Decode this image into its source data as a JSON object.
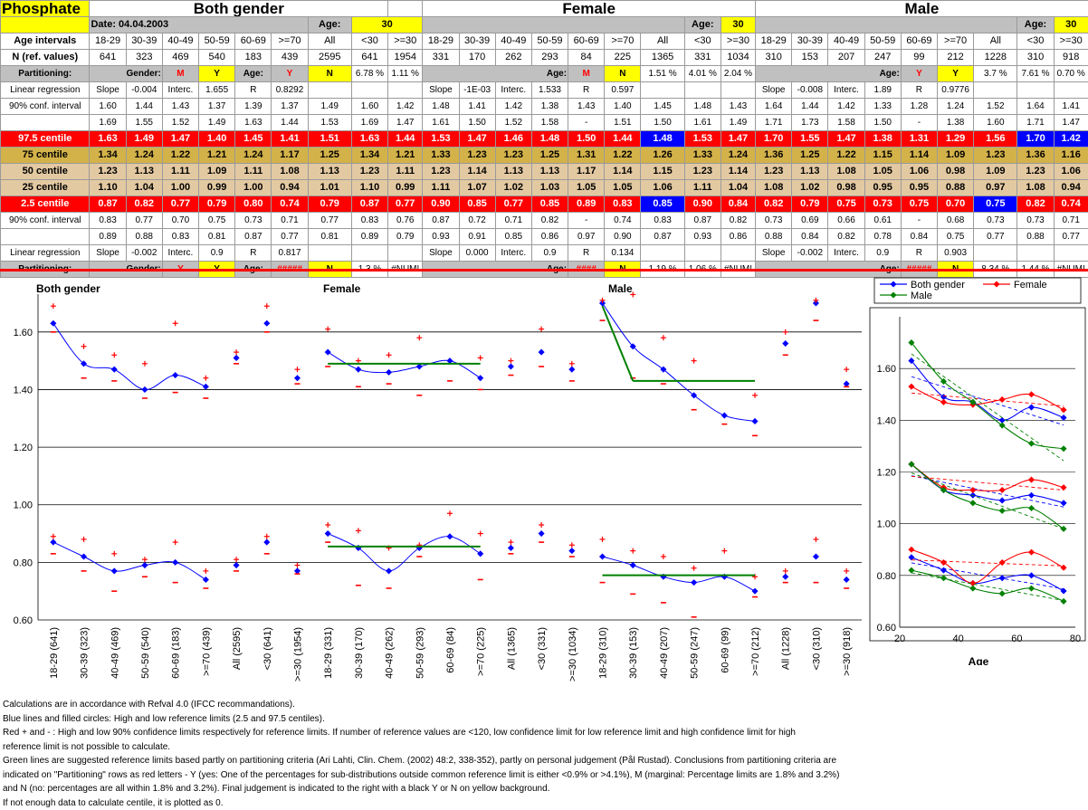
{
  "header": {
    "title": "Phosphate",
    "date": "Date:  04.04.2003",
    "groups": [
      "Both gender",
      "Female",
      "Male"
    ],
    "age_label": "Age:",
    "age_value": "30"
  },
  "row_labels": {
    "age_intervals": "Age intervals",
    "n_ref": "N (ref. values)",
    "partitioning": "Partitioning:",
    "linreg": "Linear regression",
    "conf": "90% conf. interval",
    "c975": "97.5 centile",
    "c75": "75 centile",
    "c50": "50 centile",
    "c25": "25 centile",
    "c25b": "2.5 centile",
    "gender": "Gender:",
    "age": "Age:"
  },
  "intervals": [
    "18-29",
    "30-39",
    "40-49",
    "50-59",
    "60-69",
    ">=70",
    "All",
    "<30",
    ">=30"
  ],
  "groups": [
    {
      "n": [
        "641",
        "323",
        "469",
        "540",
        "183",
        "439",
        "2595",
        "641",
        "1954"
      ],
      "part_top": {
        "gender": "Gender:",
        "g1": "M",
        "g2": "Y",
        "age": "Age:",
        "a1": "Y",
        "a2": "N",
        "p1": "6.78 %",
        "p2": "1.11 %"
      },
      "lr_top": [
        "Slope",
        "-0.004",
        "Interc.",
        "1.655",
        "R",
        "0.8292",
        "",
        "",
        ""
      ],
      "ci_top1": [
        "1.60",
        "1.44",
        "1.43",
        "1.37",
        "1.39",
        "1.37",
        "1.49",
        "1.60",
        "1.42"
      ],
      "ci_top2": [
        "1.69",
        "1.55",
        "1.52",
        "1.49",
        "1.63",
        "1.44",
        "1.53",
        "1.69",
        "1.47"
      ],
      "c975": [
        "1.63",
        "1.49",
        "1.47",
        "1.40",
        "1.45",
        "1.41",
        "1.51",
        "1.63",
        "1.44"
      ],
      "c75": [
        "1.34",
        "1.24",
        "1.22",
        "1.21",
        "1.24",
        "1.17",
        "1.25",
        "1.34",
        "1.21"
      ],
      "c50": [
        "1.23",
        "1.13",
        "1.11",
        "1.09",
        "1.11",
        "1.08",
        "1.13",
        "1.23",
        "1.11"
      ],
      "c25": [
        "1.10",
        "1.04",
        "1.00",
        "0.99",
        "1.00",
        "0.94",
        "1.01",
        "1.10",
        "0.99"
      ],
      "c025": [
        "0.87",
        "0.82",
        "0.77",
        "0.79",
        "0.80",
        "0.74",
        "0.79",
        "0.87",
        "0.77"
      ],
      "ci_bot1": [
        "0.83",
        "0.77",
        "0.70",
        "0.75",
        "0.73",
        "0.71",
        "0.77",
        "0.83",
        "0.76"
      ],
      "ci_bot2": [
        "0.89",
        "0.88",
        "0.83",
        "0.81",
        "0.87",
        "0.77",
        "0.81",
        "0.89",
        "0.79"
      ],
      "lr_bot": [
        "Slope",
        "-0.002",
        "Interc.",
        "0.9",
        "R",
        "0.817",
        "",
        "",
        ""
      ],
      "part_bot": {
        "gender": "Gender:",
        "g1": "Y",
        "g2": "Y",
        "age": "Age:",
        "a1": "#####",
        "a2": "N",
        "p1": "1.3 %",
        "p2": "#NUM!"
      }
    },
    {
      "n": [
        "331",
        "170",
        "262",
        "293",
        "84",
        "225",
        "1365",
        "331",
        "1034"
      ],
      "part_top": {
        "age": "Age:",
        "a1": "M",
        "a2": "N",
        "p0": "1.51 %",
        "p1": "4.01 %",
        "p2": "2.04 %"
      },
      "lr_top": [
        "Slope",
        "-1E-03",
        "Interc.",
        "1.533",
        "R",
        "0.597",
        "",
        "",
        ""
      ],
      "ci_top1": [
        "1.48",
        "1.41",
        "1.42",
        "1.38",
        "1.43",
        "1.40",
        "1.45",
        "1.48",
        "1.43"
      ],
      "ci_top2": [
        "1.61",
        "1.50",
        "1.52",
        "1.58",
        "-",
        "1.51",
        "1.50",
        "1.61",
        "1.49"
      ],
      "c975": [
        "1.53",
        "1.47",
        "1.46",
        "1.48",
        "1.50",
        "1.44",
        "1.48",
        "1.53",
        "1.47"
      ],
      "c75": [
        "1.33",
        "1.23",
        "1.23",
        "1.25",
        "1.31",
        "1.22",
        "1.26",
        "1.33",
        "1.24"
      ],
      "c50": [
        "1.23",
        "1.14",
        "1.13",
        "1.13",
        "1.17",
        "1.14",
        "1.15",
        "1.23",
        "1.14"
      ],
      "c25": [
        "1.11",
        "1.07",
        "1.02",
        "1.03",
        "1.05",
        "1.05",
        "1.06",
        "1.11",
        "1.04"
      ],
      "c025": [
        "0.90",
        "0.85",
        "0.77",
        "0.85",
        "0.89",
        "0.83",
        "0.85",
        "0.90",
        "0.84"
      ],
      "ci_bot1": [
        "0.87",
        "0.72",
        "0.71",
        "0.82",
        "-",
        "0.74",
        "0.83",
        "0.87",
        "0.82"
      ],
      "ci_bot2": [
        "0.93",
        "0.91",
        "0.85",
        "0.86",
        "0.97",
        "0.90",
        "0.87",
        "0.93",
        "0.86"
      ],
      "lr_bot": [
        "Slope",
        "0.000",
        "Interc.",
        "0.9",
        "R",
        "0.134",
        "",
        "",
        ""
      ],
      "part_bot": {
        "age": "Age:",
        "a1": "####",
        "a2": "N",
        "p0": "1.19 %",
        "p1": "1.06 %",
        "p2": "#NUM!"
      }
    },
    {
      "n": [
        "310",
        "153",
        "207",
        "247",
        "99",
        "212",
        "1228",
        "310",
        "918"
      ],
      "part_top": {
        "age": "Age:",
        "a1": "Y",
        "a2": "Y",
        "p0": "3.7 %",
        "p1": "7.61 %",
        "p2": "0.70 %"
      },
      "lr_top": [
        "Slope",
        "-0.008",
        "Interc.",
        "1.89",
        "R",
        "0.9776",
        "",
        "",
        ""
      ],
      "ci_top1": [
        "1.64",
        "1.44",
        "1.42",
        "1.33",
        "1.28",
        "1.24",
        "1.52",
        "1.64",
        "1.41"
      ],
      "ci_top2": [
        "1.71",
        "1.73",
        "1.58",
        "1.50",
        "-",
        "1.38",
        "1.60",
        "1.71",
        "1.47"
      ],
      "c975": [
        "1.70",
        "1.55",
        "1.47",
        "1.38",
        "1.31",
        "1.29",
        "1.56",
        "1.70",
        "1.42"
      ],
      "c75": [
        "1.36",
        "1.25",
        "1.22",
        "1.15",
        "1.14",
        "1.09",
        "1.23",
        "1.36",
        "1.16"
      ],
      "c50": [
        "1.23",
        "1.13",
        "1.08",
        "1.05",
        "1.06",
        "0.98",
        "1.09",
        "1.23",
        "1.06"
      ],
      "c25": [
        "1.08",
        "1.02",
        "0.98",
        "0.95",
        "0.95",
        "0.88",
        "0.97",
        "1.08",
        "0.94"
      ],
      "c025": [
        "0.82",
        "0.79",
        "0.75",
        "0.73",
        "0.75",
        "0.70",
        "0.75",
        "0.82",
        "0.74"
      ],
      "ci_bot1": [
        "0.73",
        "0.69",
        "0.66",
        "0.61",
        "-",
        "0.68",
        "0.73",
        "0.73",
        "0.71"
      ],
      "ci_bot2": [
        "0.88",
        "0.84",
        "0.82",
        "0.78",
        "0.84",
        "0.75",
        "0.77",
        "0.88",
        "0.77"
      ],
      "lr_bot": [
        "Slope",
        "-0.002",
        "Interc.",
        "0.9",
        "R",
        "0.903",
        "",
        "",
        ""
      ],
      "part_bot": {
        "age": "Age:",
        "a1": "#####",
        "a2": "N",
        "p0": "8.34 %",
        "p1": "1.44 %",
        "p2": "#NUM!"
      }
    }
  ],
  "chart_data": [
    {
      "type": "scatter",
      "titles": [
        "Both gender",
        "Female",
        "Male"
      ],
      "ylim": [
        0.6,
        1.7
      ],
      "yticks": [
        "0.60",
        "0.80",
        "1.00",
        "1.20",
        "1.40",
        "1.60"
      ],
      "categories": [
        "18-29 (641)",
        "30-39 (323)",
        "40-49 (469)",
        "50-59 (540)",
        "60-69 (183)",
        ">=70 (439)",
        "All (2595)",
        "<30 (641)",
        ">=30 (1954)",
        "18-29 (331)",
        "30-39 (170)",
        "40-49 (262)",
        "50-59 (293)",
        "60-69 (84)",
        ">=70 (225)",
        "All (1365)",
        "<30 (331)",
        ">=30 (1034)",
        "18-29 (310)",
        "30-39 (153)",
        "40-49 (207)",
        "50-59 (247)",
        "60-69 (99)",
        ">=70 (212)",
        "All (1228)",
        "<30 (310)",
        ">=30 (918)"
      ],
      "colors": {
        "centile": "#0000ff",
        "conf": "#ff0000",
        "suggested": "#008000"
      },
      "green_lines": [
        {
          "from": 9,
          "to": 14,
          "y": 1.49
        },
        {
          "from": 9,
          "to": 14,
          "y": 0.855
        },
        {
          "from": 18,
          "to": 19,
          "y0": 1.69,
          "y1": 1.43
        },
        {
          "from": 19,
          "to": 23,
          "y": 1.43
        },
        {
          "from": 18,
          "to": 23,
          "y": 0.755
        }
      ]
    },
    {
      "type": "line",
      "xlabel": "Age",
      "xlim": [
        20,
        80
      ],
      "xticks": [
        "20",
        "40",
        "60",
        "80"
      ],
      "ylim": [
        0.6,
        1.8
      ],
      "yticks": [
        "0.60",
        "0.80",
        "1.00",
        "1.20",
        "1.40",
        "1.60"
      ],
      "x": [
        24,
        35,
        45,
        55,
        65,
        76
      ],
      "legend": [
        "Both gender",
        "Female",
        "Male"
      ],
      "colors": [
        "#0000ff",
        "#ff0000",
        "#008000"
      ],
      "series": [
        {
          "name": "Both gender",
          "c975": [
            1.63,
            1.49,
            1.47,
            1.4,
            1.45,
            1.41
          ],
          "c50": [
            1.23,
            1.13,
            1.11,
            1.09,
            1.11,
            1.08
          ],
          "c025": [
            0.87,
            0.82,
            0.77,
            0.79,
            0.8,
            0.74
          ]
        },
        {
          "name": "Female",
          "c975": [
            1.53,
            1.47,
            1.46,
            1.48,
            1.5,
            1.44
          ],
          "c50": [
            1.23,
            1.14,
            1.13,
            1.13,
            1.17,
            1.14
          ],
          "c025": [
            0.9,
            0.85,
            0.77,
            0.85,
            0.89,
            0.83
          ]
        },
        {
          "name": "Male",
          "c975": [
            1.7,
            1.55,
            1.47,
            1.38,
            1.31,
            1.29
          ],
          "c50": [
            1.23,
            1.13,
            1.08,
            1.05,
            1.06,
            0.98
          ],
          "c025": [
            0.82,
            0.79,
            0.75,
            0.73,
            0.75,
            0.7
          ]
        }
      ]
    }
  ],
  "notes": [
    "Calculations are in accordance with Refval 4.0 (IFCC recommandations).",
    "Blue lines and filled circles: High and low reference limits (2.5 and 97.5 centiles).",
    "Red + and - : High and low 90% confidence limits respectively for reference limits. If number of reference values are <120, low confidence limit for low reference limit and high confidence limit for high",
    "reference limit is not possible to calculate.",
    "Green lines are suggested reference limits based partly on partitioning criteria (Ari Lahti, Clin. Chem. (2002) 48:2, 338-352), partly on personal judgement (Pål Rustad). Conclusions from partitioning criteria are",
    "indicated on \"Partitioning\" rows as red letters - Y (yes: One of the percentages for sub-distributions outside common reference limit is either <0.9% or >4.1%), M (marginal: Percentage limits are 1.8% and 3.2%)",
    "and N (no:  percentages are all within 1.8% and 3.2%). Final judgement is indicated to the right with a black Y or N on yellow background.",
    "If not enough data to calculate centile, it is plotted as 0."
  ]
}
